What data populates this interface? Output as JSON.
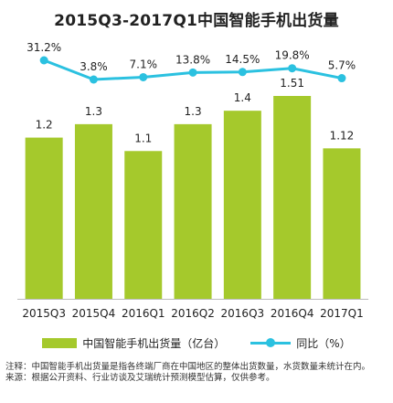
{
  "chart_data": {
    "type": "bar",
    "title": "2015Q3-2017Q1中国智能手机出货量",
    "categories": [
      "2015Q3",
      "2015Q4",
      "2016Q1",
      "2016Q2",
      "2016Q3",
      "2016Q4",
      "2017Q1"
    ],
    "series": [
      {
        "name": "中国智能手机出货量（亿台）",
        "type": "bar",
        "values": [
          1.2,
          1.3,
          1.1,
          1.3,
          1.4,
          1.51,
          1.12
        ],
        "labels": [
          "1.2",
          "1.3",
          "1.1",
          "1.3",
          "1.4",
          "1.51",
          "1.12"
        ]
      },
      {
        "name": "同比（%）",
        "type": "line",
        "values": [
          31.2,
          3.8,
          7.1,
          13.8,
          14.5,
          19.8,
          5.7
        ],
        "labels": [
          "31.2%",
          "3.8%",
          "7.1%",
          "13.8%",
          "14.5%",
          "19.8%",
          "5.7%"
        ]
      }
    ],
    "grid": false,
    "legend_position": "bottom",
    "colors": {
      "bar": "#a5c92c",
      "line": "#2bc1e0"
    }
  },
  "notes": {
    "line1": "注释：中国智能手机出货量是指各终端厂商在中国地区的整体出货数量，水货数量未统计在内。",
    "line2": "来源：根据公开资料、行业访谈及艾瑞统计预测模型估算，仅供参考。"
  }
}
